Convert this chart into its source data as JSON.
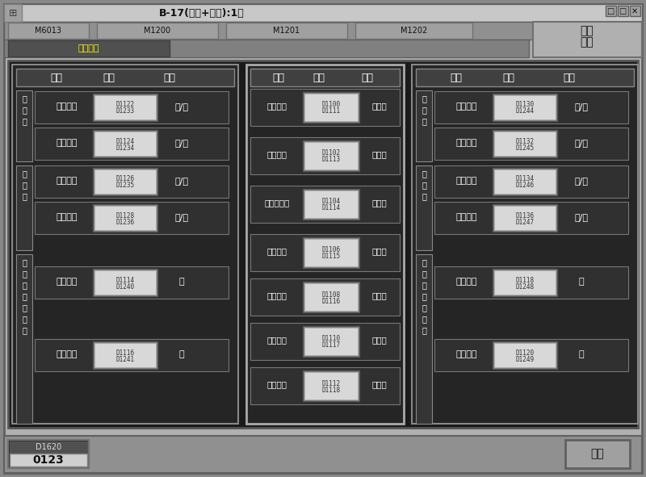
{
  "bg_color": "#1a1a1a",
  "window_bg": "#2d2d2d",
  "title_bar": "#c0c0c0",
  "title_text": "B-17(前面+背面):1号",
  "header_bg": "#808080",
  "panel_bg": "#1a1a1a",
  "input_bg": "#e8e8e8",
  "input_border": "#888888",
  "white_text": "#ffffff",
  "black_text": "#000000",
  "header_tabs": [
    "M6013",
    "M1200",
    "M1201",
    "M1202"
  ],
  "right_label1": "顾源",
  "right_label2": "磨床",
  "left_section_label": "左主轴",
  "left_vib_label": "左振荡",
  "left_work_label": "左工件加工时间",
  "right_section_label": "右主轴",
  "right_vib_label": "右振荡",
  "right_work_label": "右工件加工时间",
  "col_headers": [
    "参数",
    "数值",
    "单位"
  ],
  "left_rows": [
    {
      "label": "粗超速度",
      "addr": "D1122\nD1233",
      "unit": "转/分"
    },
    {
      "label": "精超速度",
      "addr": "D1124\nD1234",
      "unit": "转/分"
    },
    {
      "label": "粗振频率",
      "addr": "D1126\nD1235",
      "unit": "次/分"
    },
    {
      "label": "精振频率",
      "addr": "D1128\nD1236",
      "unit": "次/分"
    },
    {
      "label": "粗超时间",
      "addr": "D1114\nD1240",
      "unit": "秒"
    },
    {
      "label": "精超时间",
      "addr": "D1116\nD1241",
      "unit": "秒"
    }
  ],
  "center_rows": [
    {
      "label": "油石延时",
      "addr": "D1100\nD1111",
      "unit": "秒加压"
    },
    {
      "label": "油石延时",
      "addr": "D1102\nD1113",
      "unit": "秒跳出"
    },
    {
      "label": "振荡架延时",
      "addr": "D1104\nD1114",
      "unit": "秒跳出"
    },
    {
      "label": "气缸延时",
      "addr": "D1106\nD1115",
      "unit": "秒提升"
    },
    {
      "label": "气缸延时",
      "addr": "D1108\nD1116",
      "unit": "秒下降"
    },
    {
      "label": "排料延时",
      "addr": "D1110\nD1117",
      "unit": "秒推料"
    },
    {
      "label": "排料延时",
      "addr": "D1112\nD1118",
      "unit": "秒复位"
    }
  ],
  "right_rows": [
    {
      "label": "粗超速度",
      "addr": "D1130\nD1244",
      "unit": "转/分"
    },
    {
      "label": "精超速度",
      "addr": "D1132\nD1245",
      "unit": "转/分"
    },
    {
      "label": "粗振频率",
      "addr": "D1134\nD1246",
      "unit": "次/分"
    },
    {
      "label": "精振频率",
      "addr": "D1136\nD1247",
      "unit": "次/分"
    },
    {
      "label": "粗超时间",
      "addr": "D1118\nD1248",
      "unit": "秒"
    },
    {
      "label": "精超时间",
      "addr": "D1120\nD1249",
      "unit": "秒"
    }
  ],
  "footer_addr": "D1620",
  "footer_value": "0123",
  "footer_btn": "返回"
}
